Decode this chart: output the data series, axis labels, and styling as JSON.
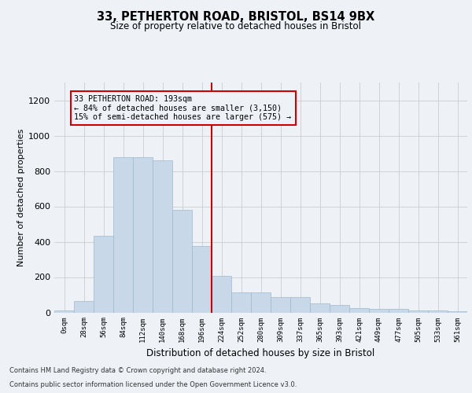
{
  "title_line1": "33, PETHERTON ROAD, BRISTOL, BS14 9BX",
  "title_line2": "Size of property relative to detached houses in Bristol",
  "xlabel": "Distribution of detached houses by size in Bristol",
  "ylabel": "Number of detached properties",
  "categories": [
    "0sqm",
    "28sqm",
    "56sqm",
    "84sqm",
    "112sqm",
    "140sqm",
    "168sqm",
    "196sqm",
    "224sqm",
    "252sqm",
    "280sqm",
    "309sqm",
    "337sqm",
    "365sqm",
    "393sqm",
    "421sqm",
    "449sqm",
    "477sqm",
    "505sqm",
    "533sqm",
    "561sqm"
  ],
  "values": [
    10,
    65,
    435,
    880,
    878,
    858,
    580,
    375,
    205,
    115,
    115,
    85,
    85,
    50,
    42,
    25,
    20,
    18,
    10,
    10,
    5
  ],
  "bar_color": "#c8d8e8",
  "bar_edge_color": "#a0b8cc",
  "grid_color": "#cccccc",
  "vline_x": 7,
  "vline_color": "#cc0000",
  "annotation_text": "33 PETHERTON ROAD: 193sqm\n← 84% of detached houses are smaller (3,150)\n15% of semi-detached houses are larger (575) →",
  "annotation_box_color": "#cc0000",
  "ylim": [
    0,
    1300
  ],
  "yticks": [
    0,
    200,
    400,
    600,
    800,
    1000,
    1200
  ],
  "footer_line1": "Contains HM Land Registry data © Crown copyright and database right 2024.",
  "footer_line2": "Contains public sector information licensed under the Open Government Licence v3.0.",
  "bg_color": "#eef2f7"
}
